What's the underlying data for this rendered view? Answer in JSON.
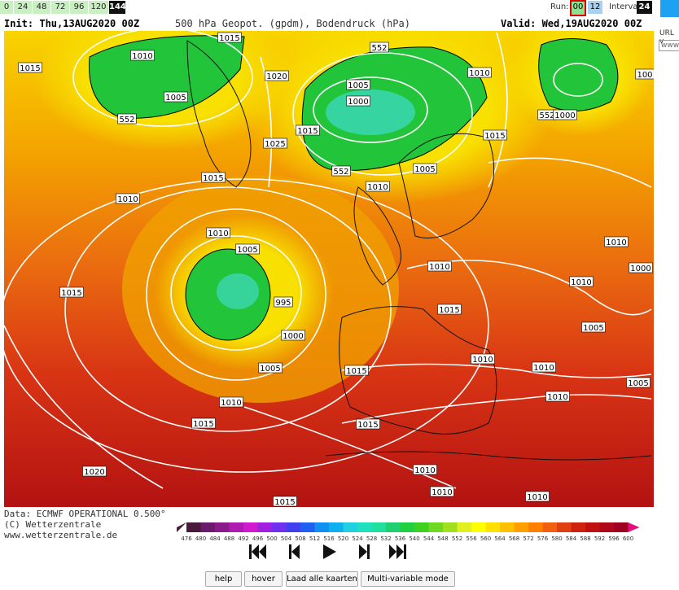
{
  "toolbar": {
    "hours": [
      0,
      24,
      48,
      72,
      96,
      120,
      144
    ],
    "active_hour": 144,
    "run_label": "Run:",
    "runs": [
      "00",
      "12"
    ],
    "active_run": "00",
    "interval_label": "Interval",
    "interval": 24
  },
  "map": {
    "init": "Init: Thu,13AUG2020 00Z",
    "title": "500 hPa Geopot. (gpdm), Bodendruck (hPa)",
    "valid": "Valid: Wed,19AUG2020 00Z",
    "isobar_labels": [
      1015,
      1010,
      1015,
      1005,
      552,
      1020,
      1025,
      1015,
      1015,
      1010,
      1005,
      1000,
      552,
      1010,
      1015,
      1005,
      1010,
      552,
      552,
      1000,
      100,
      1010,
      1005,
      995,
      1000,
      1005,
      1010,
      1015,
      1015,
      1010,
      1015,
      1010,
      1000,
      1010,
      1005,
      1010,
      1010,
      1015,
      1005,
      1010,
      1015,
      1020,
      1010,
      1010,
      1010,
      1015
    ]
  },
  "footer": {
    "data": "Data: ECMWF OPERATIONAL 0.500°",
    "copyright": "(C) Wetterzentrale",
    "url": "www.wetterzentrale.de"
  },
  "scale": {
    "values": [
      476,
      480,
      484,
      488,
      492,
      496,
      500,
      504,
      508,
      512,
      516,
      520,
      524,
      528,
      532,
      536,
      540,
      544,
      548,
      552,
      556,
      560,
      564,
      568,
      572,
      576,
      580,
      584,
      588,
      592,
      596,
      600
    ],
    "colors": [
      "#4a1a3a",
      "#6a1b6a",
      "#8b1a8b",
      "#b01ab0",
      "#d01ad0",
      "#a020e0",
      "#7030f0",
      "#4040f0",
      "#2060f0",
      "#1090f0",
      "#10b0f0",
      "#20d0e0",
      "#20e0c0",
      "#20e0a0",
      "#20d070",
      "#20d040",
      "#40d020",
      "#70d820",
      "#a0e020",
      "#e0f020",
      "#ffff00",
      "#ffe000",
      "#ffc000",
      "#ffa000",
      "#ff8000",
      "#f06010",
      "#e04010",
      "#d02010",
      "#c01010",
      "#b00818",
      "#a00020",
      "#e01080"
    ]
  },
  "buttons": [
    "help",
    "hover",
    "Laad alle kaarten",
    "Multi-variable mode"
  ],
  "sidebar": {
    "url_label": "URL v",
    "url_value": "www"
  }
}
